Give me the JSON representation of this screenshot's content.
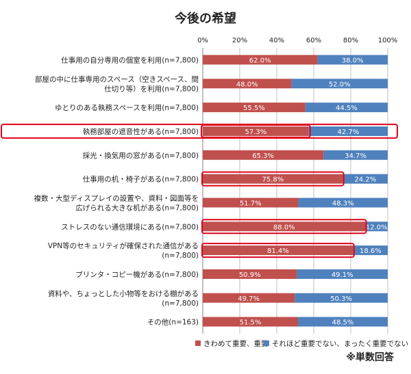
{
  "chart_data": {
    "type": "bar",
    "orientation": "horizontal-stacked-100",
    "title": "今後の希望",
    "xlim": [
      0,
      100
    ],
    "x_ticks": [
      "0%",
      "20%",
      "40%",
      "60%",
      "80%",
      "100%"
    ],
    "categories": [
      [
        "仕事用の自分専用の個室を利用(n=7,800)"
      ],
      [
        "部屋の中に仕事専用のスペース（空きスペース、間",
        "仕切り等）を利用(n=7,800)"
      ],
      [
        "ゆとりのある執務スペースを利用(n=7,800)"
      ],
      [
        "執務部屋の遮音性がある(n=7,800)"
      ],
      [
        "採光・換気用の窓がある(n=7,800)"
      ],
      [
        "仕事用の机・椅子がある(n=7,800)"
      ],
      [
        "複数・大型ディスプレイの設置や、資料・図面等を",
        "広げられる大きな机がある(n=7,800)"
      ],
      [
        "ストレスのない通信環境にある(n=7,800)"
      ],
      [
        "VPN等のセキュリティが確保された通信がある",
        "(n=7,800)"
      ],
      [
        "プリンタ・コピー機がある(n=7,800)"
      ],
      [
        "資料や、ちょっとした小物等をおける棚がある",
        "(n=7,800)"
      ],
      [
        "その他(n=163)"
      ]
    ],
    "series": [
      {
        "name": "きわめて重要、重要",
        "color": "#c0504d",
        "values": [
          62.0,
          48.0,
          55.5,
          57.3,
          65.3,
          75.8,
          51.7,
          88.0,
          81.4,
          50.9,
          49.7,
          51.5
        ],
        "labels": [
          "62.0%",
          "48.0%",
          "55.5%",
          "57.3%",
          "65.3%",
          "75.8%",
          "51.7%",
          "88.0%",
          "81.4%",
          "50.9%",
          "49.7%",
          "51.5%"
        ]
      },
      {
        "name": "それほど重要でない、まったく重要でない",
        "color": "#4f81bd",
        "values": [
          38.0,
          52.0,
          44.5,
          42.7,
          34.7,
          24.2,
          48.3,
          12.0,
          18.6,
          49.1,
          50.3,
          48.5
        ],
        "labels": [
          "38.0%",
          "52.0%",
          "44.5%",
          "42.7%",
          "34.7%",
          "24.2%",
          "48.3%",
          "12.0%",
          "18.6%",
          "49.1%",
          "50.3%",
          "48.5%"
        ]
      }
    ],
    "highlighted_categories": [
      3,
      5,
      7,
      8
    ],
    "highlight_color": "#e0001b",
    "legend_position": "bottom",
    "footnote": "※単数回答"
  }
}
